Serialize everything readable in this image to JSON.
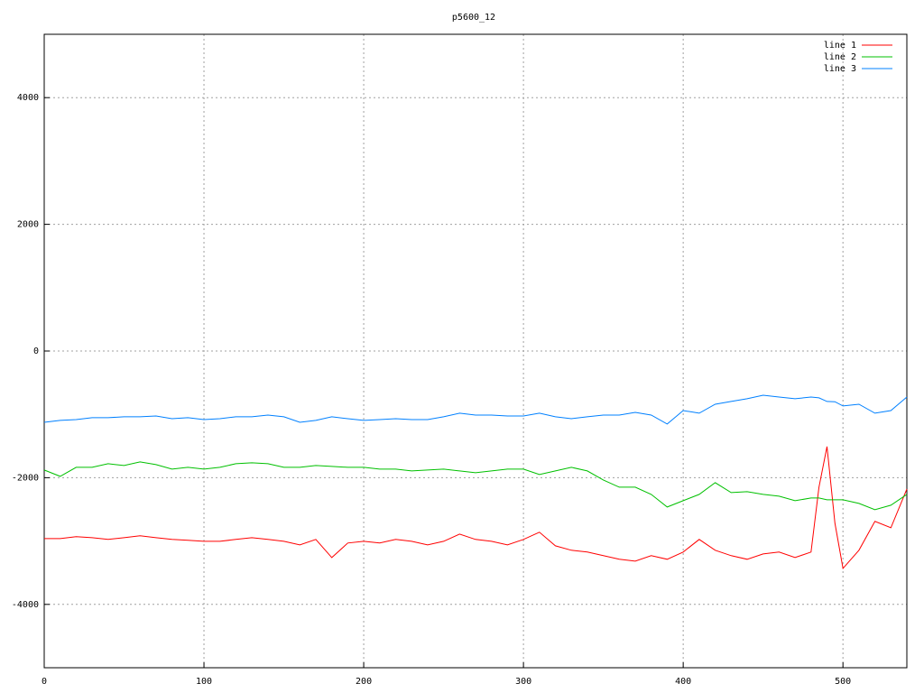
{
  "chart_data": {
    "type": "line",
    "title": "p5600_12",
    "x": [
      0,
      10,
      20,
      30,
      40,
      50,
      60,
      70,
      80,
      90,
      100,
      110,
      120,
      130,
      140,
      150,
      160,
      170,
      180,
      190,
      200,
      210,
      220,
      230,
      240,
      250,
      260,
      270,
      280,
      290,
      300,
      310,
      320,
      330,
      340,
      350,
      360,
      370,
      380,
      390,
      400,
      410,
      420,
      430,
      440,
      450,
      460,
      470,
      480,
      485,
      490,
      495,
      500,
      510,
      520,
      530,
      540
    ],
    "series": [
      {
        "name": "line 1",
        "color": "#ff0000",
        "values": [
          -2961,
          -2961,
          -2932,
          -2947,
          -2975,
          -2947,
          -2918,
          -2947,
          -2975,
          -2989,
          -3004,
          -3004,
          -2975,
          -2947,
          -2975,
          -3004,
          -3061,
          -2975,
          -3260,
          -3032,
          -3004,
          -3032,
          -2975,
          -3004,
          -3061,
          -3004,
          -2890,
          -2975,
          -3004,
          -3061,
          -2975,
          -2861,
          -3075,
          -3146,
          -3174,
          -3231,
          -3288,
          -3317,
          -3231,
          -3288,
          -3174,
          -2975,
          -3146,
          -3231,
          -3288,
          -3203,
          -3174,
          -3260,
          -3174,
          -2149,
          -1509,
          -2719,
          -3431,
          -3146,
          -2690,
          -2790,
          -2178
        ]
      },
      {
        "name": "line 2",
        "color": "#00c000",
        "values": [
          -1879,
          -1979,
          -1836,
          -1836,
          -1779,
          -1808,
          -1751,
          -1794,
          -1865,
          -1836,
          -1865,
          -1836,
          -1779,
          -1765,
          -1779,
          -1836,
          -1836,
          -1808,
          -1822,
          -1836,
          -1836,
          -1865,
          -1865,
          -1893,
          -1879,
          -1865,
          -1893,
          -1922,
          -1893,
          -1865,
          -1865,
          -1950,
          -1893,
          -1836,
          -1893,
          -2036,
          -2149,
          -2149,
          -2263,
          -2463,
          -2363,
          -2263,
          -2078,
          -2235,
          -2221,
          -2263,
          -2292,
          -2363,
          -2320,
          -2320,
          -2349,
          -2349,
          -2349,
          -2406,
          -2505,
          -2434,
          -2263
        ]
      },
      {
        "name": "line 3",
        "color": "#0080ff",
        "values": [
          -1125,
          -1096,
          -1082,
          -1053,
          -1053,
          -1039,
          -1039,
          -1025,
          -1068,
          -1053,
          -1082,
          -1068,
          -1039,
          -1039,
          -1011,
          -1039,
          -1125,
          -1096,
          -1039,
          -1068,
          -1096,
          -1082,
          -1068,
          -1082,
          -1082,
          -1039,
          -982,
          -1011,
          -1011,
          -1025,
          -1025,
          -982,
          -1039,
          -1068,
          -1039,
          -1011,
          -1011,
          -968,
          -1011,
          -1153,
          -940,
          -982,
          -840,
          -797,
          -754,
          -698,
          -726,
          -754,
          -726,
          -740,
          -797,
          -800,
          -868,
          -840,
          -982,
          -940,
          -726
        ]
      }
    ],
    "xlim": [
      0,
      540
    ],
    "xticks": [
      0,
      100,
      200,
      300,
      400,
      500
    ],
    "ylim": [
      -5000,
      5000
    ],
    "yticks": [
      -4000,
      -2000,
      0,
      2000,
      4000
    ],
    "grid": true,
    "legend": "top-right"
  }
}
